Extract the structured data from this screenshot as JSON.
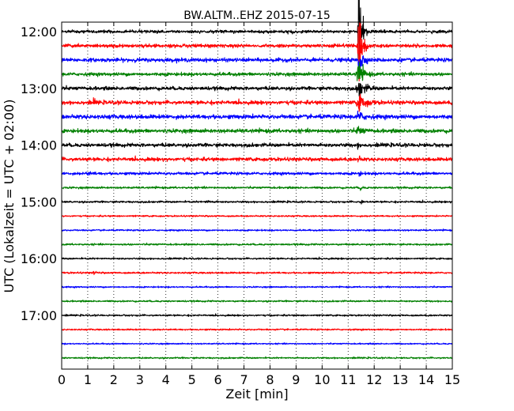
{
  "chart_data": {
    "type": "line",
    "title": "BW.ALTM..EHZ 2015-07-15",
    "xlabel": "Zeit  [min]",
    "ylabel": "UTC (Lokalzeit = UTC + 02:00)",
    "xlim": [
      0,
      15
    ],
    "x_ticks": [
      "0",
      "1",
      "2",
      "3",
      "4",
      "5",
      "6",
      "7",
      "8",
      "9",
      "10",
      "11",
      "12",
      "13",
      "14",
      "15"
    ],
    "y_ticks": [
      "12:00",
      "13:00",
      "14:00",
      "15:00",
      "16:00",
      "17:00"
    ],
    "grid": "vertical dotted",
    "line_colors": [
      "#000000",
      "#ff0000",
      "#0000ff",
      "#008000"
    ],
    "rows": [
      {
        "start": "12:00",
        "color": "#000000",
        "amplitude": 0.28
      },
      {
        "start": "12:15",
        "color": "#ff0000",
        "amplitude": 0.32
      },
      {
        "start": "12:30",
        "color": "#0000ff",
        "amplitude": 0.34
      },
      {
        "start": "12:45",
        "color": "#008000",
        "amplitude": 0.3
      },
      {
        "start": "13:00",
        "color": "#000000",
        "amplitude": 0.32
      },
      {
        "start": "13:15",
        "color": "#ff0000",
        "amplitude": 0.34
      },
      {
        "start": "13:30",
        "color": "#0000ff",
        "amplitude": 0.38
      },
      {
        "start": "13:45",
        "color": "#008000",
        "amplitude": 0.34
      },
      {
        "start": "14:00",
        "color": "#000000",
        "amplitude": 0.32
      },
      {
        "start": "14:15",
        "color": "#ff0000",
        "amplitude": 0.32
      },
      {
        "start": "14:30",
        "color": "#0000ff",
        "amplitude": 0.25
      },
      {
        "start": "14:45",
        "color": "#008000",
        "amplitude": 0.18
      },
      {
        "start": "15:00",
        "color": "#000000",
        "amplitude": 0.17
      },
      {
        "start": "15:15",
        "color": "#ff0000",
        "amplitude": 0.14
      },
      {
        "start": "15:30",
        "color": "#0000ff",
        "amplitude": 0.14
      },
      {
        "start": "15:45",
        "color": "#008000",
        "amplitude": 0.16
      },
      {
        "start": "16:00",
        "color": "#000000",
        "amplitude": 0.15
      },
      {
        "start": "16:15",
        "color": "#ff0000",
        "amplitude": 0.16
      },
      {
        "start": "16:30",
        "color": "#0000ff",
        "amplitude": 0.13
      },
      {
        "start": "16:45",
        "color": "#008000",
        "amplitude": 0.15
      },
      {
        "start": "17:00",
        "color": "#000000",
        "amplitude": 0.15
      },
      {
        "start": "17:15",
        "color": "#ff0000",
        "amplitude": 0.14
      },
      {
        "start": "17:30",
        "color": "#0000ff",
        "amplitude": 0.12
      },
      {
        "start": "17:45",
        "color": "#008000",
        "amplitude": 0.14
      }
    ],
    "events": [
      {
        "row_start": "12:00",
        "start_min": 11.35,
        "end_min": 11.75,
        "peak": 16.0
      },
      {
        "row_start": "12:15",
        "start_min": 11.35,
        "end_min": 11.8,
        "peak": 11.0
      },
      {
        "row_start": "12:30",
        "start_min": 11.35,
        "end_min": 11.8,
        "peak": 5.0
      },
      {
        "row_start": "12:45",
        "start_min": 11.3,
        "end_min": 12.0,
        "peak": 2.6
      },
      {
        "row_start": "13:00",
        "start_min": 11.3,
        "end_min": 12.2,
        "peak": 1.8
      },
      {
        "row_start": "13:15",
        "start_min": 11.3,
        "end_min": 12.3,
        "peak": 1.6
      },
      {
        "row_start": "13:30",
        "start_min": 11.3,
        "end_min": 12.1,
        "peak": 1.0
      },
      {
        "row_start": "13:45",
        "start_min": 11.3,
        "end_min": 12.0,
        "peak": 0.8
      },
      {
        "row_start": "14:00",
        "start_min": 11.35,
        "end_min": 11.6,
        "peak": 0.5
      },
      {
        "row_start": "14:15",
        "start_min": 11.35,
        "end_min": 11.65,
        "peak": 0.6
      },
      {
        "row_start": "14:30",
        "start_min": 11.4,
        "end_min": 11.6,
        "peak": 0.6
      },
      {
        "row_start": "14:45",
        "start_min": 11.45,
        "end_min": 11.6,
        "peak": 0.8
      },
      {
        "row_start": "15:00",
        "start_min": 11.5,
        "end_min": 11.6,
        "peak": 1.3
      },
      {
        "row_start": "13:15",
        "start_min": 1.2,
        "end_min": 1.45,
        "peak": 0.6
      },
      {
        "row_start": "16:15",
        "start_min": 1.2,
        "end_min": 1.45,
        "peak": 0.5
      },
      {
        "row_start": "14:30",
        "start_min": 0.9,
        "end_min": 1.6,
        "peak": 0.25
      },
      {
        "row_start": "15:00",
        "start_min": 5.5,
        "end_min": 6.2,
        "peak": 0.22
      }
    ]
  }
}
